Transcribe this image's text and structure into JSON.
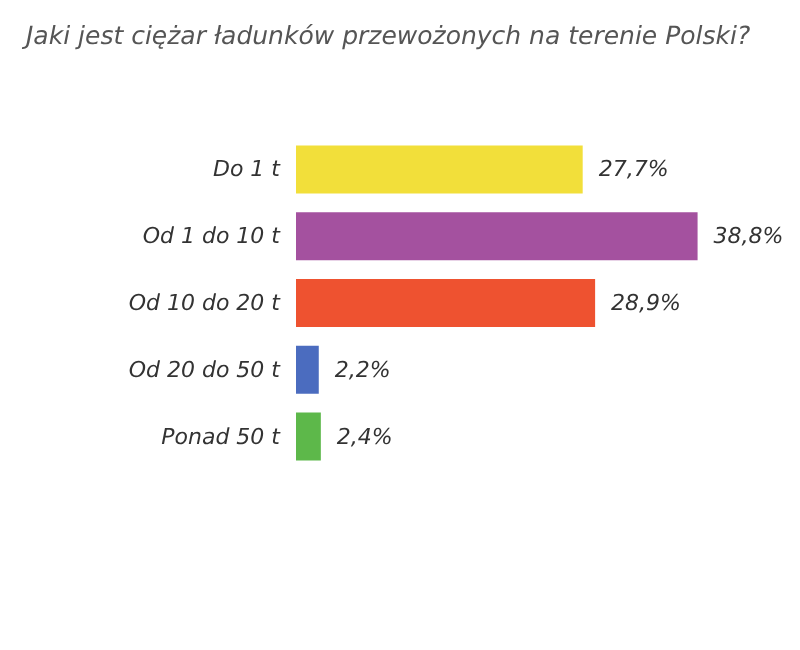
{
  "chart_data": {
    "type": "bar",
    "orientation": "horizontal",
    "title": "Jaki jest ciężar ładunków przewożonych na terenie Polski?",
    "categories": [
      "Do 1 t",
      "Od 1 do 10 t",
      "Od 10 do 20 t",
      "Od 20 do 50 t",
      "Ponad 50 t"
    ],
    "values": [
      27.7,
      38.8,
      28.9,
      2.2,
      2.4
    ],
    "colors": [
      "#f2df3a",
      "#a4519f",
      "#ee5230",
      "#4b6cbf",
      "#5db84a"
    ],
    "value_labels": [
      "27,7%",
      "38,8%",
      "28,9%",
      "2,2%",
      "2,4%"
    ]
  }
}
